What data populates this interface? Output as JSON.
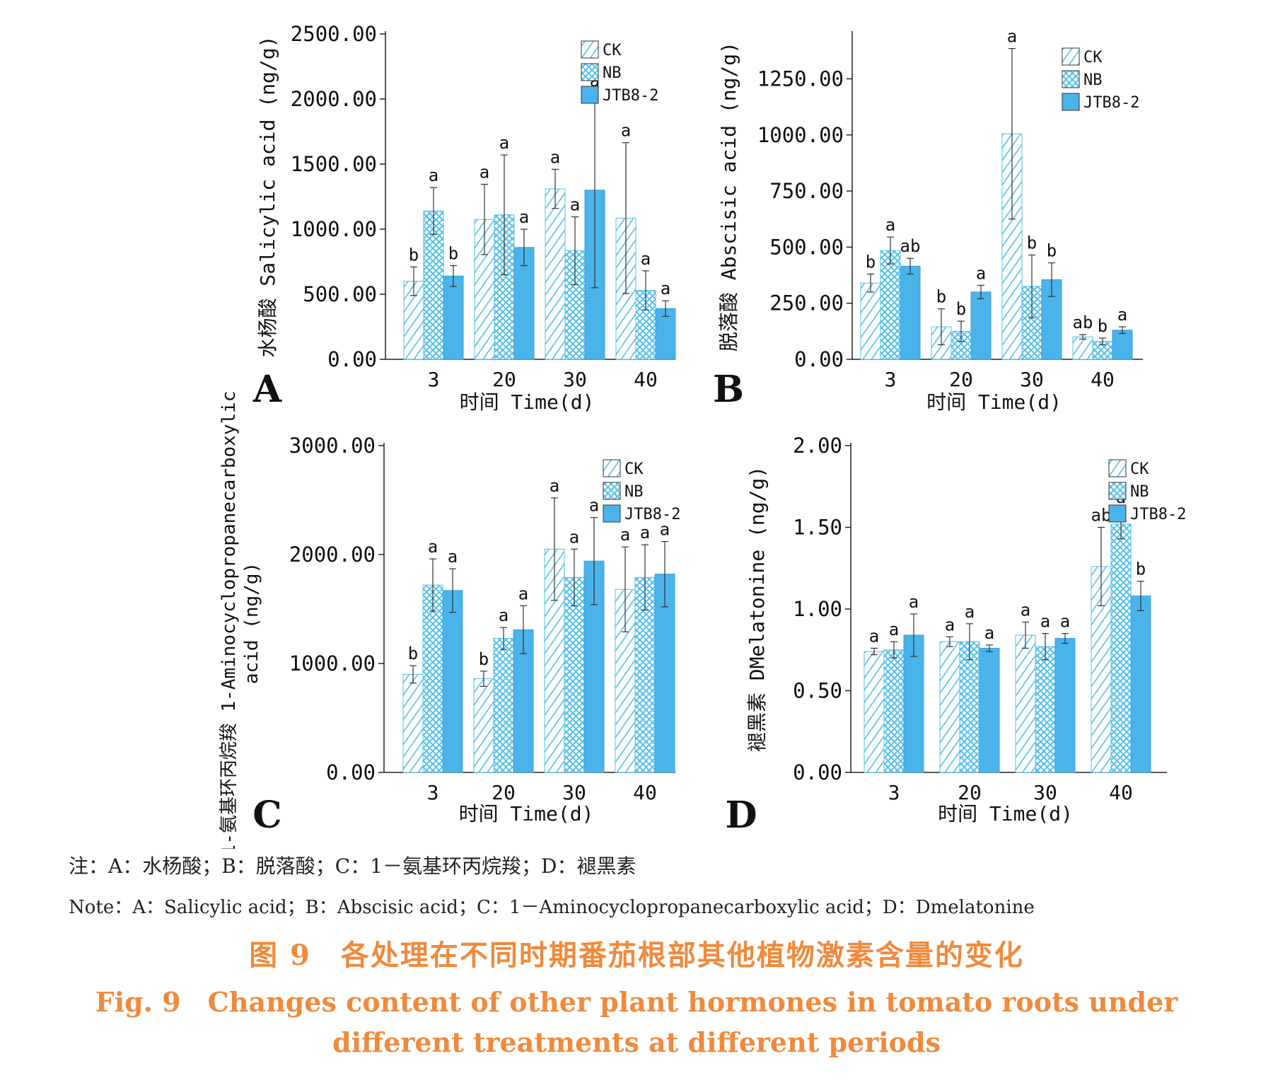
{
  "legend": [
    "CK",
    "NB",
    "JTB8-2"
  ],
  "colors": {
    "ck": "#56c0e8",
    "nb": "#56c0e8",
    "jtb": "#4ab3ea",
    "axis": "#222222",
    "caption": "#f08a3c"
  },
  "note_cn": "注：A：水杨酸；B：脱落酸；C：1－氨基环丙烷羧；D：褪黑素",
  "note_en": "Note：A：Salicylic acid；B：Abscisic acid；C：1－Aminocyclopropanecarboxylic acid；D：Dmelatonine",
  "caption_cn": "图 9　各处理在不同时期番茄根部其他植物激素含量的变化",
  "caption_en_line1": "Fig. 9　Changes content of other plant hormones in tomato roots under",
  "caption_en_line2": "different treatments at different periods",
  "chart_data": [
    {
      "panel": "A",
      "type": "bar",
      "ylabel": "水杨酸 Salicylic acid (ng/g)",
      "xlabel": "时间 Time(d)",
      "categories": [
        "3",
        "20",
        "30",
        "40"
      ],
      "ylim": [
        0,
        2500
      ],
      "yticks": [
        "0.00",
        "500.00",
        "1000.00",
        "1500.00",
        "2000.00",
        "2500.00"
      ],
      "series": [
        {
          "name": "CK",
          "values": [
            600,
            1075,
            1310,
            1085
          ],
          "errors": [
            110,
            270,
            150,
            580
          ],
          "letters": [
            "b",
            "a",
            "a",
            "a"
          ]
        },
        {
          "name": "NB",
          "values": [
            1140,
            1110,
            835,
            530
          ],
          "errors": [
            180,
            460,
            260,
            150
          ],
          "letters": [
            "a",
            "a",
            "a",
            "a"
          ]
        },
        {
          "name": "JTB8-2",
          "values": [
            640,
            860,
            1300,
            390
          ],
          "errors": [
            80,
            140,
            750,
            60
          ],
          "letters": [
            "b",
            "a",
            "a",
            "a"
          ]
        }
      ]
    },
    {
      "panel": "B",
      "type": "bar",
      "ylabel": "脱落酸 Abscisic acid (ng/g)",
      "xlabel": "时间 Time(d)",
      "categories": [
        "3",
        "20",
        "30",
        "40"
      ],
      "ylim": [
        0,
        1450
      ],
      "yticks": [
        "0.00",
        "250.00",
        "500.00",
        "750.00",
        "1000.00",
        "1250.00"
      ],
      "series": [
        {
          "name": "CK",
          "values": [
            340,
            145,
            1005,
            100
          ],
          "errors": [
            40,
            80,
            380,
            10
          ],
          "letters": [
            "b",
            "b",
            "a",
            "ab"
          ]
        },
        {
          "name": "NB",
          "values": [
            485,
            125,
            325,
            80
          ],
          "errors": [
            60,
            45,
            140,
            15
          ],
          "letters": [
            "a",
            "b",
            "b",
            "b"
          ]
        },
        {
          "name": "JTB8-2",
          "values": [
            415,
            300,
            355,
            130
          ],
          "errors": [
            35,
            30,
            75,
            15
          ],
          "letters": [
            "ab",
            "a",
            "b",
            "a"
          ]
        }
      ]
    },
    {
      "panel": "C",
      "type": "bar",
      "ylabel": "1-氨基环丙烷羧 1-Aminocyclopropanecarboxylic acid (ng/g)",
      "xlabel": "时间 Time(d)",
      "categories": [
        "3",
        "20",
        "30",
        "40"
      ],
      "ylim": [
        0,
        3000
      ],
      "yticks": [
        "0.00",
        "1000.00",
        "2000.00",
        "3000.00"
      ],
      "series": [
        {
          "name": "CK",
          "values": [
            900,
            860,
            2050,
            1680
          ],
          "errors": [
            80,
            70,
            470,
            390
          ],
          "letters": [
            "b",
            "b",
            "a",
            "a"
          ]
        },
        {
          "name": "NB",
          "values": [
            1720,
            1230,
            1790,
            1790
          ],
          "errors": [
            240,
            100,
            260,
            300
          ],
          "letters": [
            "a",
            "a",
            "a",
            "a"
          ]
        },
        {
          "name": "JTB8-2",
          "values": [
            1670,
            1310,
            1940,
            1820
          ],
          "errors": [
            200,
            220,
            400,
            300
          ],
          "letters": [
            "a",
            "a",
            "a",
            "a"
          ]
        }
      ]
    },
    {
      "panel": "D",
      "type": "bar",
      "ylabel": "褪黑素 DMelatonine (ng/g)",
      "xlabel": "时间 Time(d)",
      "categories": [
        "3",
        "20",
        "30",
        "40"
      ],
      "ylim": [
        0,
        2.0
      ],
      "yticks": [
        "0.00",
        "0.50",
        "1.00",
        "1.50",
        "2.00"
      ],
      "series": [
        {
          "name": "CK",
          "values": [
            0.74,
            0.8,
            0.84,
            1.26
          ],
          "errors": [
            0.02,
            0.03,
            0.08,
            0.24
          ],
          "letters": [
            "a",
            "a",
            "a",
            "ab"
          ]
        },
        {
          "name": "NB",
          "values": [
            0.75,
            0.8,
            0.77,
            1.52
          ],
          "errors": [
            0.05,
            0.11,
            0.08,
            0.09
          ],
          "letters": [
            "a",
            "a",
            "a",
            "a"
          ]
        },
        {
          "name": "JTB8-2",
          "values": [
            0.84,
            0.76,
            0.82,
            1.08
          ],
          "errors": [
            0.13,
            0.02,
            0.03,
            0.09
          ],
          "letters": [
            "a",
            "a",
            "a",
            "b"
          ]
        }
      ]
    }
  ]
}
